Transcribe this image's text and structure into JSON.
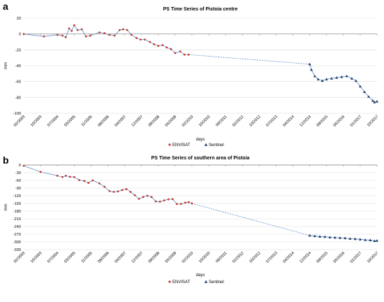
{
  "chart_data": [
    {
      "type": "line",
      "panel": "a",
      "title": "PS Time Series of Pistoia centre",
      "xlabel": "days",
      "ylabel": "mm",
      "ylim": [
        -100,
        20
      ],
      "yticks": [
        20,
        0,
        -20,
        -40,
        -60,
        -80,
        -100
      ],
      "xticks": [
        "02/2003",
        "10/2003",
        "07/2004",
        "03/2005",
        "11/2005",
        "08/2006",
        "04/2007",
        "12/2007",
        "09/2008",
        "05/2009",
        "02/2010",
        "10/2010",
        "06/2011",
        "02/2012",
        "10/2012",
        "07/2013",
        "04/2014",
        "12/2014",
        "09/2015",
        "05/2016",
        "01/2017",
        "10/2017"
      ],
      "grid": true,
      "legend_position": "bottom-center",
      "series": [
        {
          "name": "ENVISAT",
          "color": "#c0392b",
          "marker": "circle",
          "points": [
            [
              0,
              0
            ],
            [
              1.2,
              -3
            ],
            [
              2.0,
              -1
            ],
            [
              2.3,
              -2
            ],
            [
              2.5,
              -4
            ],
            [
              2.7,
              7
            ],
            [
              2.85,
              4
            ],
            [
              3.0,
              11
            ],
            [
              3.2,
              5
            ],
            [
              3.45,
              6
            ],
            [
              3.7,
              -3
            ],
            [
              3.95,
              -2
            ],
            [
              4.5,
              2
            ],
            [
              4.8,
              1
            ],
            [
              5.1,
              -1
            ],
            [
              5.4,
              -2
            ],
            [
              5.7,
              5
            ],
            [
              5.9,
              6
            ],
            [
              6.15,
              5
            ],
            [
              6.4,
              -1
            ],
            [
              6.7,
              -5
            ],
            [
              6.95,
              -7
            ],
            [
              7.2,
              -7
            ],
            [
              7.5,
              -10
            ],
            [
              7.75,
              -13
            ],
            [
              8.0,
              -15
            ],
            [
              8.25,
              -14
            ],
            [
              8.5,
              -17
            ],
            [
              8.75,
              -19
            ],
            [
              9.0,
              -24
            ],
            [
              9.3,
              -22
            ],
            [
              9.55,
              -26
            ],
            [
              9.8,
              -26
            ]
          ]
        },
        {
          "name": "Sentinel",
          "color": "#1f3a60",
          "marker": "triangle",
          "points": [
            [
              17.0,
              -38
            ],
            [
              17.1,
              -45
            ],
            [
              17.3,
              -53
            ],
            [
              17.5,
              -57
            ],
            [
              17.75,
              -59
            ],
            [
              18.0,
              -57
            ],
            [
              18.3,
              -56
            ],
            [
              18.6,
              -55
            ],
            [
              18.9,
              -54
            ],
            [
              19.2,
              -53
            ],
            [
              19.5,
              -56
            ],
            [
              19.75,
              -59
            ],
            [
              20.0,
              -66
            ],
            [
              20.25,
              -73
            ],
            [
              20.5,
              -79
            ],
            [
              20.75,
              -84
            ],
            [
              20.85,
              -86
            ],
            [
              21.0,
              -85
            ]
          ]
        }
      ]
    },
    {
      "type": "line",
      "panel": "b",
      "title": "PS Time Series of southern area of Pistoia",
      "xlabel": "days",
      "ylabel": "mm",
      "ylim": [
        -330,
        0
      ],
      "yticks": [
        0,
        -30,
        -60,
        -90,
        -120,
        -150,
        -180,
        -210,
        -240,
        -270,
        -300,
        -330
      ],
      "xticks": [
        "02/2003",
        "10/2003",
        "07/2004",
        "03/2005",
        "11/2005",
        "08/2006",
        "04/2007",
        "12/2007",
        "09/2008",
        "05/2009",
        "02/2010",
        "10/2010",
        "06/2011",
        "02/2012",
        "10/2012",
        "07/2013",
        "04/2014",
        "12/2014",
        "09/2015",
        "05/2016",
        "01/2017",
        "10/2017"
      ],
      "grid": true,
      "legend_position": "bottom-center",
      "series": [
        {
          "name": "ENVISAT",
          "color": "#c0392b",
          "marker": "circle",
          "points": [
            [
              0,
              -3
            ],
            [
              1.0,
              -27
            ],
            [
              2.0,
              -42
            ],
            [
              2.3,
              -47
            ],
            [
              2.5,
              -42
            ],
            [
              2.75,
              -46
            ],
            [
              3.0,
              -47
            ],
            [
              3.3,
              -59
            ],
            [
              3.6,
              -62
            ],
            [
              3.85,
              -70
            ],
            [
              4.1,
              -60
            ],
            [
              4.5,
              -72
            ],
            [
              4.8,
              -85
            ],
            [
              5.1,
              -102
            ],
            [
              5.35,
              -105
            ],
            [
              5.6,
              -103
            ],
            [
              5.85,
              -98
            ],
            [
              6.1,
              -94
            ],
            [
              6.35,
              -105
            ],
            [
              6.6,
              -118
            ],
            [
              6.85,
              -132
            ],
            [
              7.1,
              -125
            ],
            [
              7.35,
              -120
            ],
            [
              7.6,
              -125
            ],
            [
              7.85,
              -142
            ],
            [
              8.1,
              -143
            ],
            [
              8.35,
              -138
            ],
            [
              8.6,
              -134
            ],
            [
              8.85,
              -133
            ],
            [
              9.1,
              -152
            ],
            [
              9.35,
              -152
            ],
            [
              9.6,
              -147
            ],
            [
              9.8,
              -145
            ],
            [
              10.0,
              -150
            ]
          ]
        },
        {
          "name": "Sentinel",
          "color": "#1f3a60",
          "marker": "triangle",
          "points": [
            [
              17.0,
              -275
            ],
            [
              17.3,
              -277
            ],
            [
              17.6,
              -279
            ],
            [
              17.9,
              -280
            ],
            [
              18.2,
              -282
            ],
            [
              18.5,
              -283
            ],
            [
              18.8,
              -284
            ],
            [
              19.1,
              -285
            ],
            [
              19.4,
              -287
            ],
            [
              19.7,
              -288
            ],
            [
              20.0,
              -290
            ],
            [
              20.3,
              -292
            ],
            [
              20.6,
              -293
            ],
            [
              20.85,
              -296
            ],
            [
              21.0,
              -295
            ]
          ]
        }
      ]
    }
  ]
}
